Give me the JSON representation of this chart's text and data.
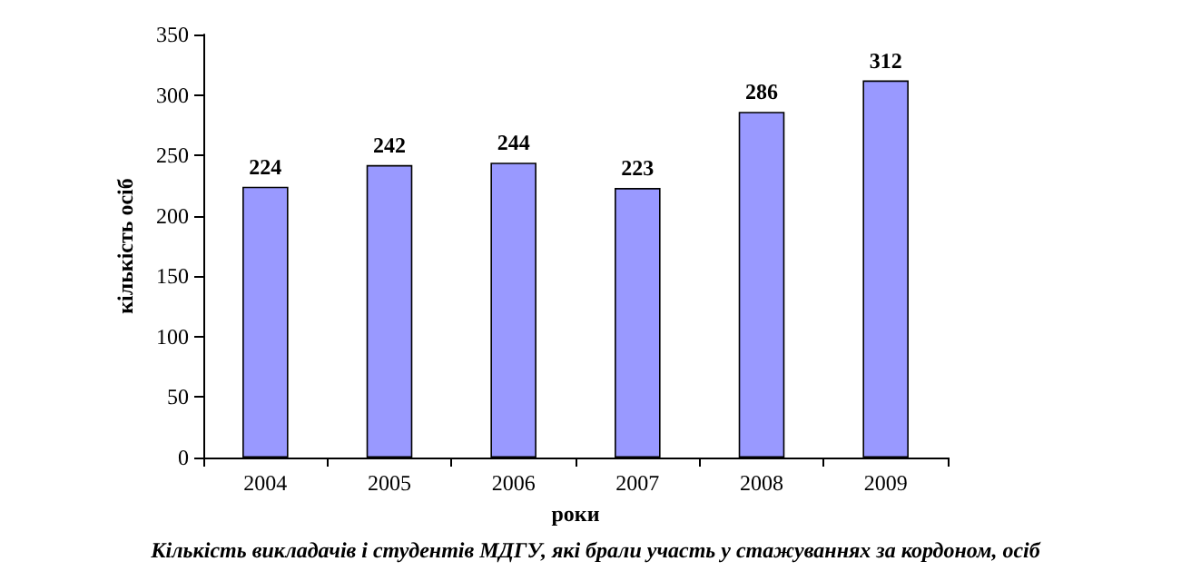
{
  "chart_data": {
    "type": "bar",
    "title": "Кількість викладачів і студентів МДГУ, які брали участь у стажуваннях за кордоном, осіб",
    "xlabel": "роки",
    "ylabel": "кількість осіб",
    "categories": [
      "2004",
      "2005",
      "2006",
      "2007",
      "2008",
      "2009"
    ],
    "values": [
      224,
      242,
      244,
      223,
      286,
      312
    ],
    "color": "#9999ff",
    "ylim": [
      0,
      350
    ],
    "yticks": [
      0,
      50,
      100,
      150,
      200,
      250,
      300,
      350
    ],
    "grid": false,
    "data_labels": true
  }
}
